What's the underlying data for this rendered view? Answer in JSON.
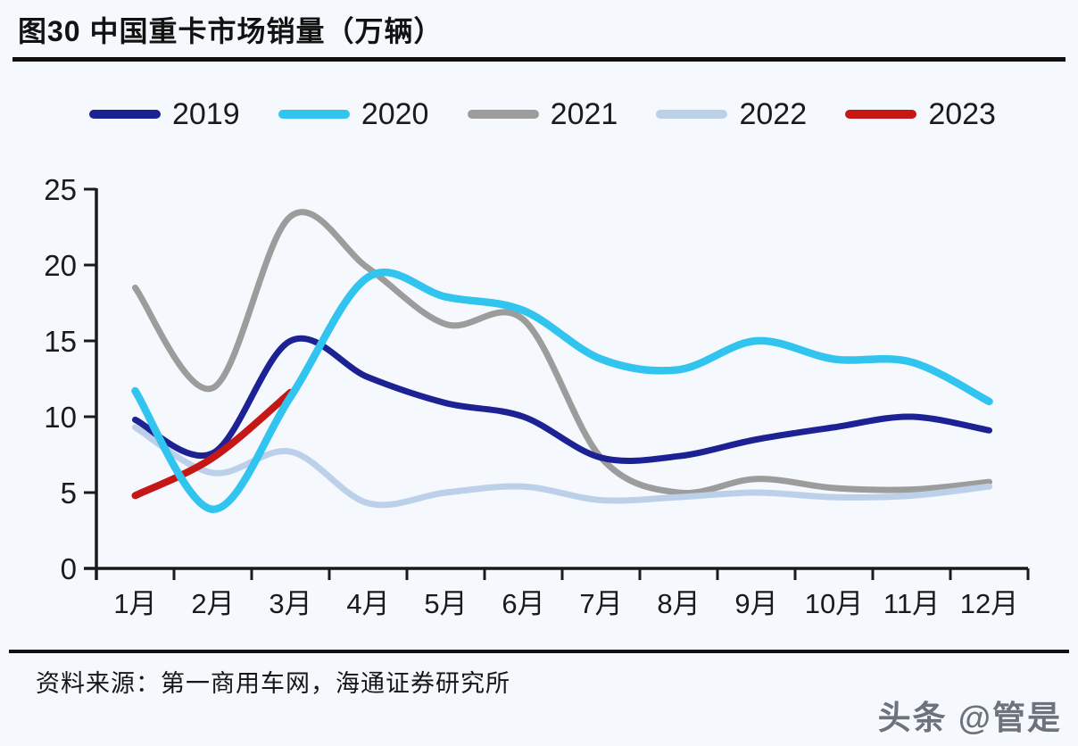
{
  "header": {
    "title": "图30 中国重卡市场销量（万辆）"
  },
  "footer": {
    "source": "资料来源：第一商用车网，海通证券研究所",
    "watermark": "头条 @管是"
  },
  "chart_data": {
    "type": "line",
    "title": "图30 中国重卡市场销量（万辆）",
    "xlabel": "",
    "ylabel": "",
    "unit": "万辆",
    "categories": [
      "1月",
      "2月",
      "3月",
      "4月",
      "5月",
      "6月",
      "7月",
      "8月",
      "9月",
      "10月",
      "11月",
      "12月"
    ],
    "yticks": [
      0,
      5,
      10,
      15,
      20,
      25
    ],
    "ylim": [
      0,
      25
    ],
    "grid": false,
    "legend_position": "top",
    "axis_color": "#1a1a1a",
    "series": [
      {
        "name": "2019",
        "color": "#1c2193",
        "values": [
          9.8,
          7.6,
          15.0,
          12.6,
          10.9,
          10.0,
          7.3,
          7.4,
          8.5,
          9.3,
          10.0,
          9.1
        ]
      },
      {
        "name": "2020",
        "color": "#30c4ee",
        "values": [
          11.7,
          3.9,
          11.3,
          19.2,
          17.9,
          17.0,
          13.8,
          13.1,
          15.0,
          13.8,
          13.6,
          11.0
        ]
      },
      {
        "name": "2021",
        "color": "#9c9c9c",
        "values": [
          18.5,
          11.9,
          23.2,
          19.8,
          16.1,
          16.4,
          7.3,
          5.0,
          5.9,
          5.3,
          5.2,
          5.7
        ]
      },
      {
        "name": "2022",
        "color": "#bdd0e9",
        "values": [
          9.3,
          6.3,
          7.7,
          4.3,
          5.0,
          5.4,
          4.5,
          4.7,
          5.0,
          4.7,
          4.8,
          5.4
        ]
      },
      {
        "name": "2023",
        "color": "#c61717",
        "values": [
          4.8,
          7.3,
          11.6,
          null,
          null,
          null,
          null,
          null,
          null,
          null,
          null,
          null
        ]
      }
    ]
  }
}
